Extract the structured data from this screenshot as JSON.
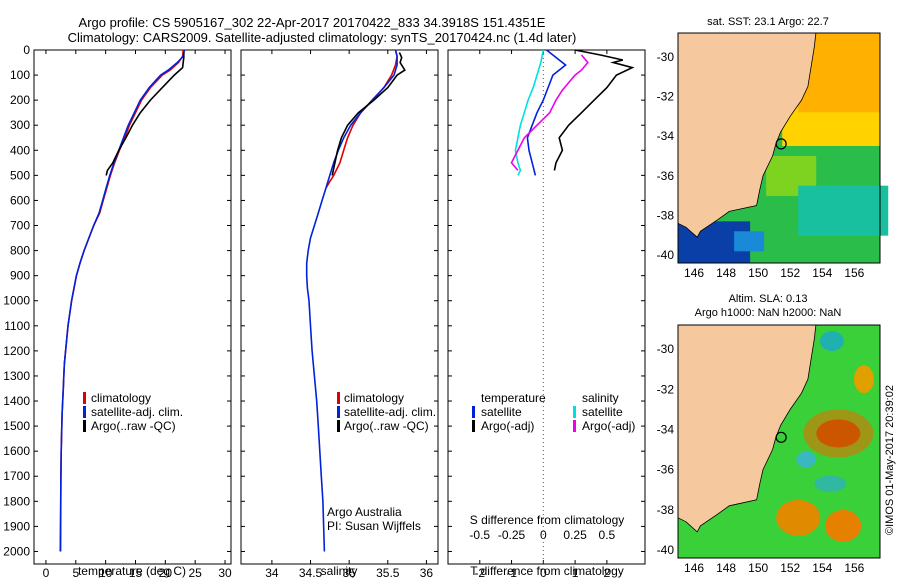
{
  "figure": {
    "title_line1": "Argo profile: CS 5905167_302 22-Apr-2017 20170422_833 34.3918S 151.4351E",
    "title_line2": "Climatology: CARS2009. Satellite-adjusted climatology: synTS_20170424.nc (1.4d later)",
    "credit_line1": "Argo Australia",
    "credit_line2": "PI: Susan Wijffels",
    "side_label": "©IMOS 01-May-2017 20:39:02"
  },
  "colors": {
    "climatology": "#e00000",
    "satellite_temp": "#0022dd",
    "argo": "#000000",
    "satellite_sal": "#00e0e0",
    "argo_sal_diff": "#ee00ee",
    "land": "#f6c89e",
    "zero_line": "#555555"
  },
  "chart_data": [
    {
      "type": "line",
      "id": "temperature_panel",
      "xlabel": "temperature (deg C)",
      "ylabel": "",
      "xlim": [
        -2,
        31
      ],
      "ylim": [
        2050,
        0
      ],
      "xticks": [
        0,
        5,
        10,
        15,
        20,
        25,
        30
      ],
      "yticks": [
        0,
        100,
        200,
        300,
        400,
        500,
        600,
        700,
        800,
        900,
        1000,
        1100,
        1200,
        1300,
        1400,
        1500,
        1600,
        1700,
        1800,
        1900,
        2000
      ],
      "legend": [
        "climatology",
        "satellite-adj. clim.",
        "Argo(..raw -QC)"
      ],
      "series": [
        {
          "name": "climatology",
          "color_key": "climatology",
          "x": [
            23.0,
            22.9,
            22.2,
            20.8,
            19.5,
            17.5,
            16.0,
            15.0,
            14.0,
            13.2,
            12.3,
            11.5,
            10.8,
            10.2,
            9.6,
            9.0,
            8.0,
            7.2,
            6.4,
            5.7,
            5.1,
            4.7,
            4.3,
            4.0,
            3.7,
            3.5,
            3.3,
            3.1,
            3.0,
            2.9,
            2.8,
            2.7,
            2.65,
            2.6,
            2.55,
            2.5,
            2.45
          ],
          "y": [
            0,
            25,
            50,
            80,
            100,
            150,
            200,
            250,
            300,
            350,
            400,
            450,
            500,
            550,
            600,
            650,
            700,
            750,
            800,
            850,
            900,
            950,
            1000,
            1050,
            1100,
            1150,
            1200,
            1250,
            1300,
            1350,
            1400,
            1450,
            1500,
            1550,
            1600,
            1700,
            2000
          ]
        },
        {
          "name": "satellite-adj. clim.",
          "color_key": "satellite_temp",
          "x": [
            23.2,
            23.0,
            22.0,
            20.5,
            19.2,
            17.3,
            15.8,
            14.8,
            13.8,
            13.0,
            12.2,
            11.4,
            10.7,
            10.1,
            9.5,
            8.9,
            8.0,
            7.2,
            6.4,
            5.7,
            5.1,
            4.7,
            4.3,
            4.0,
            3.7,
            3.5,
            3.3,
            3.1,
            3.0,
            2.9,
            2.8,
            2.7,
            2.65,
            2.6,
            2.55,
            2.5,
            2.4
          ],
          "y": [
            0,
            25,
            50,
            80,
            100,
            150,
            200,
            250,
            300,
            350,
            400,
            450,
            500,
            550,
            600,
            650,
            700,
            750,
            800,
            850,
            900,
            950,
            1000,
            1050,
            1100,
            1150,
            1200,
            1250,
            1300,
            1350,
            1400,
            1450,
            1500,
            1550,
            1600,
            1700,
            2000
          ]
        },
        {
          "name": "Argo(..raw -QC)",
          "color_key": "argo",
          "x": [
            23.1,
            23.1,
            23.0,
            22.9,
            21.5,
            19.5,
            17.5,
            15.8,
            14.5,
            13.4,
            12.2,
            11.2,
            10.3,
            10.1
          ],
          "y": [
            10,
            30,
            50,
            70,
            100,
            150,
            200,
            250,
            300,
            350,
            400,
            450,
            480,
            500
          ]
        }
      ]
    },
    {
      "type": "line",
      "id": "salinity_panel",
      "xlabel": "salinity",
      "xlim": [
        33.6,
        36.15
      ],
      "ylim": [
        2050,
        0
      ],
      "xticks": [
        34,
        34.5,
        35,
        35.5,
        36
      ],
      "legend": [
        "climatology",
        "satellite-adj. clim.",
        "Argo(..raw -QC)"
      ],
      "series": [
        {
          "name": "climatology",
          "color_key": "climatology",
          "x": [
            35.6,
            35.62,
            35.6,
            35.55,
            35.45,
            35.3,
            35.15,
            35.05,
            34.98,
            34.93,
            34.88,
            34.8,
            34.75,
            34.7
          ],
          "y": [
            0,
            25,
            60,
            100,
            150,
            200,
            250,
            300,
            350,
            400,
            450,
            500,
            525,
            550
          ]
        },
        {
          "name": "satellite-adj. clim.",
          "color_key": "satellite_temp",
          "x": [
            35.6,
            35.62,
            35.62,
            35.58,
            35.45,
            35.3,
            35.15,
            35.02,
            34.93,
            34.86,
            34.8,
            34.75,
            34.7,
            34.65,
            34.6,
            34.55,
            34.5,
            34.47,
            34.45,
            34.45,
            34.46,
            34.48,
            34.5,
            34.52,
            34.55,
            34.58,
            34.6,
            34.62,
            34.64,
            34.66,
            34.68
          ],
          "y": [
            0,
            25,
            60,
            100,
            150,
            200,
            250,
            300,
            350,
            400,
            450,
            500,
            550,
            600,
            650,
            700,
            750,
            800,
            850,
            900,
            950,
            1000,
            1100,
            1200,
            1300,
            1400,
            1500,
            1600,
            1700,
            1800,
            2000
          ]
        },
        {
          "name": "Argo(..raw -QC)",
          "color_key": "argo",
          "x": [
            35.65,
            35.68,
            35.66,
            35.72,
            35.62,
            35.5,
            35.32,
            35.12,
            34.98,
            34.9,
            34.85,
            34.78
          ],
          "y": [
            10,
            30,
            50,
            80,
            100,
            150,
            200,
            250,
            300,
            350,
            400,
            500
          ]
        }
      ]
    },
    {
      "type": "line",
      "id": "difference_panel",
      "xlabel": "T difference from climatology",
      "xlabel_top": "S difference from climatology",
      "xlim": [
        -3,
        3.2
      ],
      "ylim": [
        2050,
        0
      ],
      "xticks": [
        -2,
        -1,
        0,
        1,
        2
      ],
      "xticks_s": [
        -0.5,
        -0.25,
        0,
        0.25,
        0.5
      ],
      "xticks_s_labels": [
        "-0.5",
        "-0.25",
        "0",
        "0.25",
        "0.5"
      ],
      "legend_left_title": "temperature",
      "legend_left": [
        "satellite",
        "Argo(-adj)"
      ],
      "legend_right_title": "salinity",
      "legend_right": [
        "satellite",
        "Argo(-adj)"
      ],
      "series": [
        {
          "name": "satellite",
          "group": "temperature",
          "color_key": "satellite_temp",
          "x": [
            0.1,
            0.3,
            0.5,
            0.7,
            0.5,
            0.3,
            0.15,
            0.0,
            -0.2,
            -0.35,
            -0.5,
            -0.45,
            -0.35,
            -0.25
          ],
          "y": [
            0,
            20,
            40,
            60,
            80,
            100,
            150,
            200,
            250,
            300,
            350,
            400,
            450,
            500
          ]
        },
        {
          "name": "Argo(-adj)",
          "group": "temperature",
          "color_key": "argo",
          "x": [
            1.0,
            1.8,
            2.5,
            2.2,
            2.8,
            2.3,
            2.0,
            1.6,
            1.2,
            0.8,
            0.5,
            0.6,
            0.4,
            0.35
          ],
          "y": [
            0,
            20,
            40,
            50,
            70,
            100,
            150,
            200,
            250,
            300,
            350,
            400,
            450,
            480
          ]
        },
        {
          "name": "satellite",
          "group": "salinity",
          "color_key": "satellite_sal",
          "x": [
            0.0,
            -0.02,
            -0.05,
            -0.08,
            -0.12,
            -0.15,
            -0.18,
            -0.2,
            -0.22,
            -0.2,
            -0.18,
            -0.2
          ],
          "y": [
            0,
            50,
            100,
            150,
            200,
            250,
            300,
            350,
            400,
            450,
            480,
            500
          ]
        },
        {
          "name": "Argo(-adj)",
          "group": "salinity",
          "color_key": "argo_sal_diff",
          "x": [
            0.3,
            0.35,
            0.3,
            0.25,
            0.2,
            0.15,
            0.1,
            0.05,
            -0.05,
            -0.15,
            -0.2,
            -0.25,
            -0.2
          ],
          "y": [
            20,
            50,
            80,
            100,
            130,
            160,
            200,
            250,
            300,
            350,
            400,
            450,
            480
          ]
        }
      ]
    },
    {
      "type": "heatmap",
      "id": "sst_map",
      "title": "sat. SST: 23.1  Argo: 22.7",
      "xlim": [
        145,
        157.6
      ],
      "ylim": [
        -40.4,
        -28.8
      ],
      "xticks": [
        146,
        148,
        150,
        152,
        154,
        156
      ],
      "yticks": [
        -30,
        -32,
        -34,
        -36,
        -38,
        -40
      ],
      "float_position": [
        151.4351,
        -34.3918
      ]
    },
    {
      "type": "heatmap",
      "id": "sla_map",
      "title": "Altim. SLA: 0.13",
      "subtitle": "Argo h1000: NaN  h2000: NaN",
      "xlim": [
        145,
        157.6
      ],
      "ylim": [
        -40.4,
        -28.8
      ],
      "xticks": [
        146,
        148,
        150,
        152,
        154,
        156
      ],
      "yticks": [
        -30,
        -32,
        -34,
        -36,
        -38,
        -40
      ],
      "float_position": [
        151.4351,
        -34.3918
      ]
    }
  ]
}
